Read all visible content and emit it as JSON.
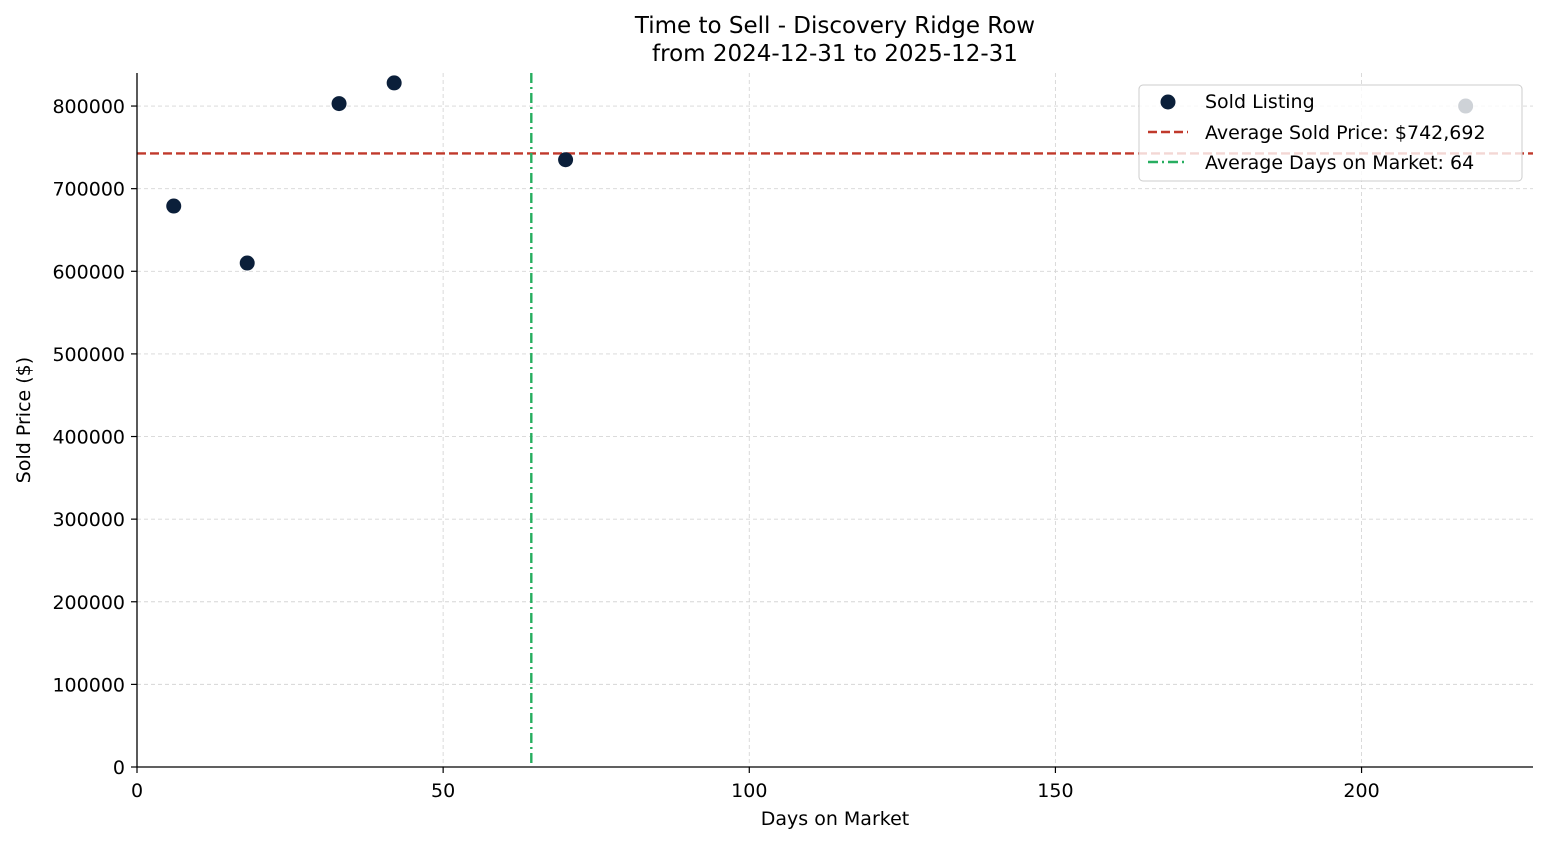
{
  "chart_data": {
    "type": "scatter",
    "title_line1": "Time to Sell - Discovery Ridge Row",
    "title_line2": "from 2024-12-31 to 2025-12-31",
    "xlabel": "Days on Market",
    "ylabel": "Sold Price ($)",
    "xlim": [
      0,
      228
    ],
    "ylim": [
      0,
      840000
    ],
    "x_ticks": [
      0,
      50,
      100,
      150,
      200
    ],
    "y_ticks": [
      0,
      100000,
      200000,
      300000,
      400000,
      500000,
      600000,
      700000,
      800000
    ],
    "grid": true,
    "legend_position": "top-right",
    "series": [
      {
        "name": "Sold Listing",
        "color": "#0b1f3a",
        "points": [
          {
            "x": 6,
            "y": 679000
          },
          {
            "x": 18,
            "y": 610000
          },
          {
            "x": 33,
            "y": 803000
          },
          {
            "x": 42,
            "y": 828000
          },
          {
            "x": 70,
            "y": 735000
          },
          {
            "x": 217,
            "y": 800000
          }
        ]
      }
    ],
    "reference_lines": [
      {
        "name": "Average Sold Price: $742,692",
        "orientation": "horizontal",
        "value": 742692,
        "color": "#c0392b",
        "style": "dashed"
      },
      {
        "name": "Average Days on Market: 64",
        "orientation": "vertical",
        "value": 64.4,
        "color": "#27ae60",
        "style": "dashdot"
      }
    ]
  }
}
